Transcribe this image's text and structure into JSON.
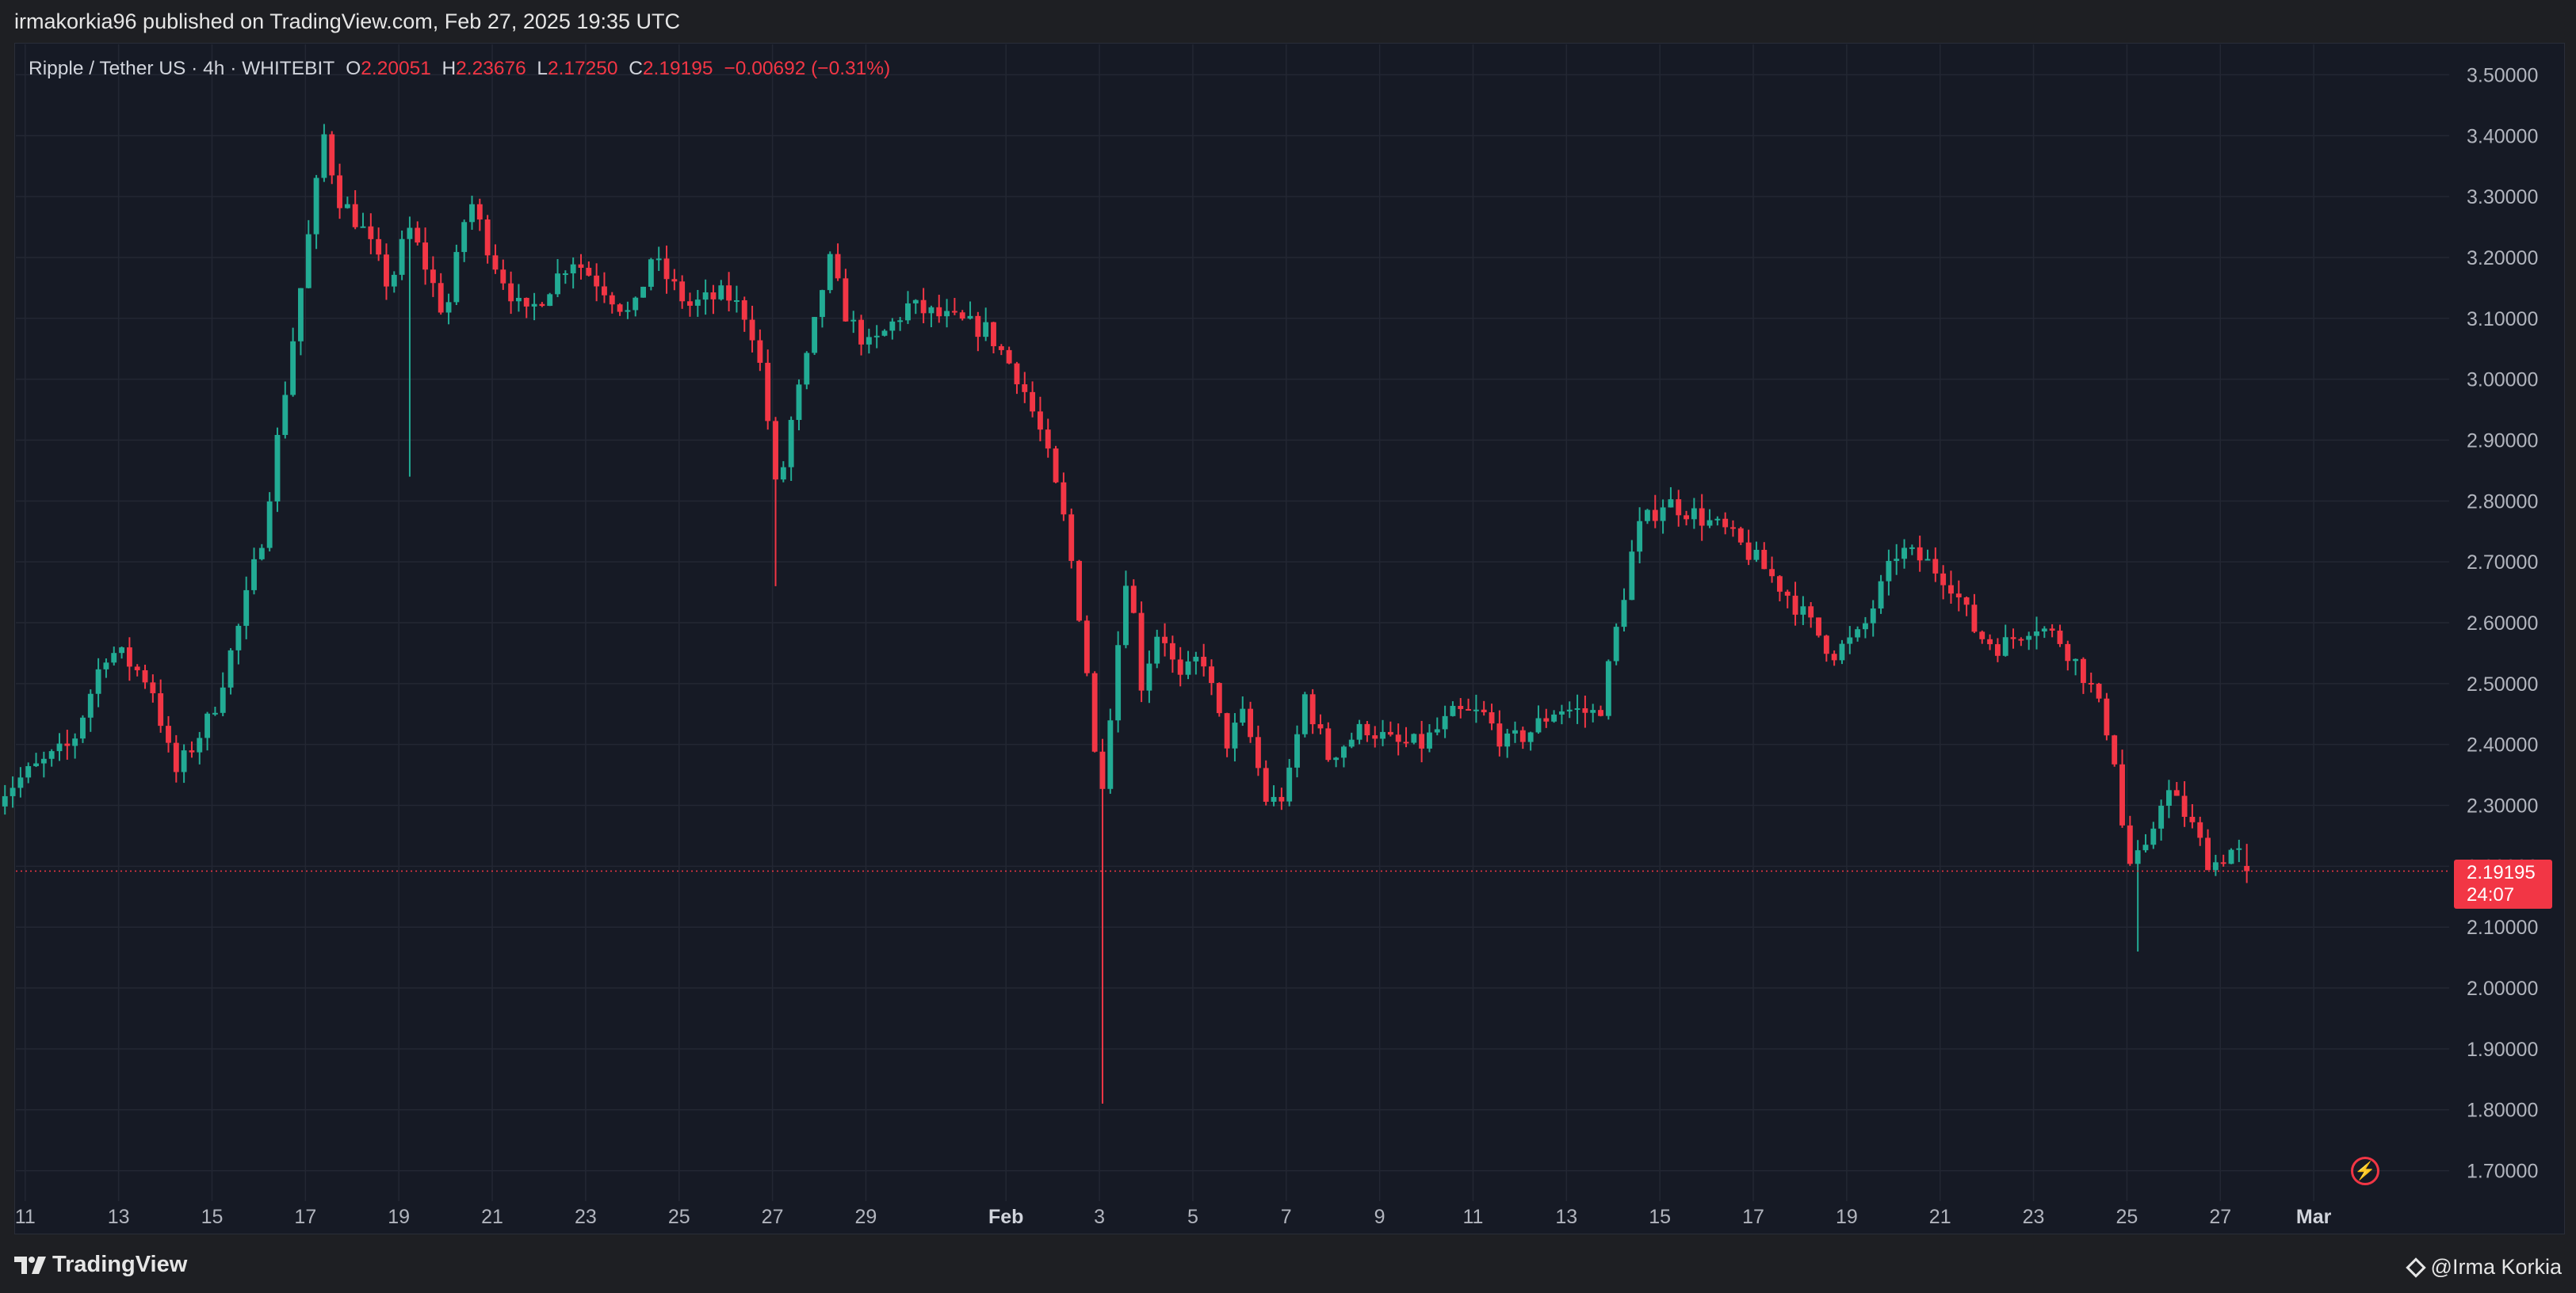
{
  "header": {
    "published_line": "irmakorkia96 published on TradingView.com, Feb 27, 2025 19:35 UTC"
  },
  "legend": {
    "symbol": "Ripple / Tether US · 4h · WHITEBIT",
    "o_label": "O",
    "o_value": "2.20051",
    "h_label": "H",
    "h_value": "2.23676",
    "l_label": "L",
    "l_value": "2.17250",
    "c_label": "C",
    "c_value": "2.19195",
    "change": "−0.00692 (−0.31%)"
  },
  "price_tag": {
    "price": "2.19195",
    "countdown": "24:07"
  },
  "footer": {
    "brand": "TradingView",
    "author": "@Irma Korkia"
  },
  "colors": {
    "up": "#22ab94",
    "down": "#f23645",
    "background": "#161a25",
    "grid": "#232733",
    "text": "#b2b5be",
    "last_price_line": "#f23645"
  },
  "icons": {
    "alert": "lightning-icon",
    "logo": "tradingview-logo-icon",
    "author": "diamond-icon"
  },
  "chart_data": {
    "type": "candlestick",
    "symbol": "XRP/USDT",
    "interval": "4h",
    "exchange": "WHITEBIT",
    "ylim": [
      1.65,
      3.55
    ],
    "y_ticks": [
      "3.50000",
      "3.40000",
      "3.30000",
      "3.20000",
      "3.10000",
      "3.00000",
      "2.90000",
      "2.80000",
      "2.70000",
      "2.60000",
      "2.50000",
      "2.40000",
      "2.30000",
      "2.20000",
      "2.10000",
      "2.00000",
      "1.90000",
      "1.80000",
      "1.70000"
    ],
    "x_range_days": [
      -20.2,
      31.9
    ],
    "x_ticks": [
      {
        "label": "11",
        "day": -20
      },
      {
        "label": "13",
        "day": -18
      },
      {
        "label": "15",
        "day": -16
      },
      {
        "label": "17",
        "day": -14
      },
      {
        "label": "19",
        "day": -12
      },
      {
        "label": "21",
        "day": -10
      },
      {
        "label": "23",
        "day": -8
      },
      {
        "label": "25",
        "day": -6
      },
      {
        "label": "27",
        "day": -4
      },
      {
        "label": "29",
        "day": -2
      },
      {
        "label": "Feb",
        "day": 1
      },
      {
        "label": "3",
        "day": 3
      },
      {
        "label": "5",
        "day": 5
      },
      {
        "label": "7",
        "day": 7
      },
      {
        "label": "9",
        "day": 9
      },
      {
        "label": "11",
        "day": 11
      },
      {
        "label": "13",
        "day": 13
      },
      {
        "label": "15",
        "day": 15
      },
      {
        "label": "17",
        "day": 17
      },
      {
        "label": "19",
        "day": 19
      },
      {
        "label": "21",
        "day": 21
      },
      {
        "label": "23",
        "day": 23
      },
      {
        "label": "25",
        "day": 25
      },
      {
        "label": "27",
        "day": 27
      },
      {
        "label": "Mar",
        "day": 29
      }
    ],
    "last_price": 2.19195,
    "anchors": [
      [
        -20.7,
        2.31
      ],
      [
        -20.0,
        2.35
      ],
      [
        -19.0,
        2.4
      ],
      [
        -18.3,
        2.55
      ],
      [
        -18.0,
        2.55
      ],
      [
        -17.3,
        2.5
      ],
      [
        -16.8,
        2.35
      ],
      [
        -16.0,
        2.45
      ],
      [
        -15.4,
        2.6
      ],
      [
        -14.9,
        2.75
      ],
      [
        -14.4,
        3.0
      ],
      [
        -14.0,
        3.2
      ],
      [
        -13.6,
        3.4
      ],
      [
        -13.3,
        3.3
      ],
      [
        -12.8,
        3.25
      ],
      [
        -12.5,
        3.2
      ],
      [
        -12.2,
        3.15
      ],
      [
        -11.8,
        3.25
      ],
      [
        -11.5,
        3.2
      ],
      [
        -11.0,
        3.1
      ],
      [
        -10.5,
        3.3
      ],
      [
        -10.0,
        3.2
      ],
      [
        -9.3,
        3.1
      ],
      [
        -8.8,
        3.15
      ],
      [
        -8.3,
        3.2
      ],
      [
        -7.6,
        3.15
      ],
      [
        -7.0,
        3.1
      ],
      [
        -6.6,
        3.2
      ],
      [
        -5.8,
        3.12
      ],
      [
        -5.0,
        3.14
      ],
      [
        -4.5,
        3.1
      ],
      [
        -4.2,
        3.0
      ],
      [
        -3.9,
        2.8
      ],
      [
        -3.6,
        2.93
      ],
      [
        -3.2,
        3.05
      ],
      [
        -2.8,
        3.2
      ],
      [
        -2.4,
        3.1
      ],
      [
        -1.9,
        3.05
      ],
      [
        -1.1,
        3.12
      ],
      [
        -0.3,
        3.1
      ],
      [
        0.6,
        3.08
      ],
      [
        1.3,
        3.0
      ],
      [
        1.8,
        2.9
      ],
      [
        2.3,
        2.75
      ],
      [
        2.7,
        2.55
      ],
      [
        3.0,
        2.3
      ],
      [
        3.3,
        2.5
      ],
      [
        3.6,
        2.7
      ],
      [
        3.9,
        2.5
      ],
      [
        4.3,
        2.6
      ],
      [
        4.7,
        2.5
      ],
      [
        5.2,
        2.55
      ],
      [
        5.7,
        2.4
      ],
      [
        6.1,
        2.45
      ],
      [
        6.6,
        2.3
      ],
      [
        7.0,
        2.32
      ],
      [
        7.4,
        2.48
      ],
      [
        7.9,
        2.38
      ],
      [
        8.7,
        2.43
      ],
      [
        9.3,
        2.4
      ],
      [
        9.9,
        2.4
      ],
      [
        10.6,
        2.45
      ],
      [
        11.2,
        2.45
      ],
      [
        11.7,
        2.4
      ],
      [
        12.2,
        2.42
      ],
      [
        12.8,
        2.46
      ],
      [
        13.7,
        2.45
      ],
      [
        14.1,
        2.6
      ],
      [
        14.5,
        2.75
      ],
      [
        15.1,
        2.8
      ],
      [
        15.7,
        2.78
      ],
      [
        16.4,
        2.75
      ],
      [
        17.1,
        2.7
      ],
      [
        17.7,
        2.65
      ],
      [
        18.2,
        2.6
      ],
      [
        18.7,
        2.55
      ],
      [
        19.3,
        2.58
      ],
      [
        19.7,
        2.65
      ],
      [
        20.1,
        2.72
      ],
      [
        20.7,
        2.7
      ],
      [
        21.2,
        2.67
      ],
      [
        21.8,
        2.58
      ],
      [
        22.3,
        2.56
      ],
      [
        23.0,
        2.6
      ],
      [
        23.6,
        2.57
      ],
      [
        24.2,
        2.5
      ],
      [
        24.7,
        2.4
      ],
      [
        25.0,
        2.2
      ],
      [
        25.4,
        2.22
      ],
      [
        25.8,
        2.33
      ],
      [
        26.3,
        2.28
      ],
      [
        26.8,
        2.2
      ],
      [
        27.3,
        2.23
      ],
      [
        27.7,
        2.19
      ]
    ],
    "spikes": [
      [
        3.0,
        1.81
      ],
      [
        -3.9,
        2.66
      ],
      [
        -11.7,
        2.84
      ],
      [
        25.3,
        2.06
      ]
    ],
    "ohlc_last": {
      "open": 2.20051,
      "high": 2.23676,
      "low": 2.1725,
      "close": 2.19195,
      "change": -0.00692,
      "change_pct": -0.31
    }
  }
}
